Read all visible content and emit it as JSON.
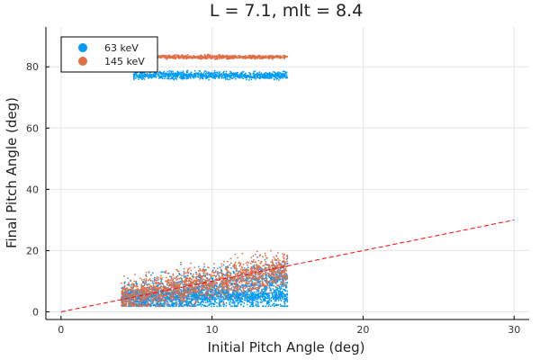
{
  "chart_data": {
    "type": "scatter",
    "title": "L = 7.1, mlt = 8.4",
    "xlabel": "Initial Pitch Angle (deg)",
    "ylabel": "Final Pitch Angle (deg)",
    "xlim": [
      -1,
      31
    ],
    "ylim": [
      -2.5,
      93
    ],
    "x_ticks": [
      0,
      10,
      20,
      30
    ],
    "y_ticks": [
      0,
      20,
      40,
      60,
      80
    ],
    "grid": true,
    "legend_position": "top-left",
    "series": [
      {
        "name": "63 keV",
        "color": "#009AF9",
        "clusters": [
          {
            "x_range": [
              4.8,
              15.0
            ],
            "y_center": 77.2,
            "y_spread": 1.2
          },
          {
            "x_range": [
              4.0,
              15.0
            ],
            "y_center": 5.0,
            "y_spread": 2.5
          },
          {
            "x_range": [
              4.0,
              15.0
            ],
            "y_trend": [
              4.0,
              11.0
            ],
            "y_spread": 6.0
          },
          {
            "x_range": [
              4.0,
              15.0
            ],
            "y_center": 1.8,
            "y_spread": 0.05
          }
        ]
      },
      {
        "name": "145 keV",
        "color": "#E26F46",
        "clusters": [
          {
            "x_range": [
              6.2,
              15.0
            ],
            "y_center": 83.2,
            "y_spread": 0.6
          },
          {
            "x_range": [
              4.0,
              15.0
            ],
            "y_trend": [
              4.5,
              14.0
            ],
            "y_spread": 5.5
          }
        ]
      },
      {
        "name": "",
        "type": "line",
        "style": "dashed",
        "color": "#FF0000",
        "x": [
          0,
          30
        ],
        "y": [
          0,
          30
        ]
      }
    ]
  }
}
